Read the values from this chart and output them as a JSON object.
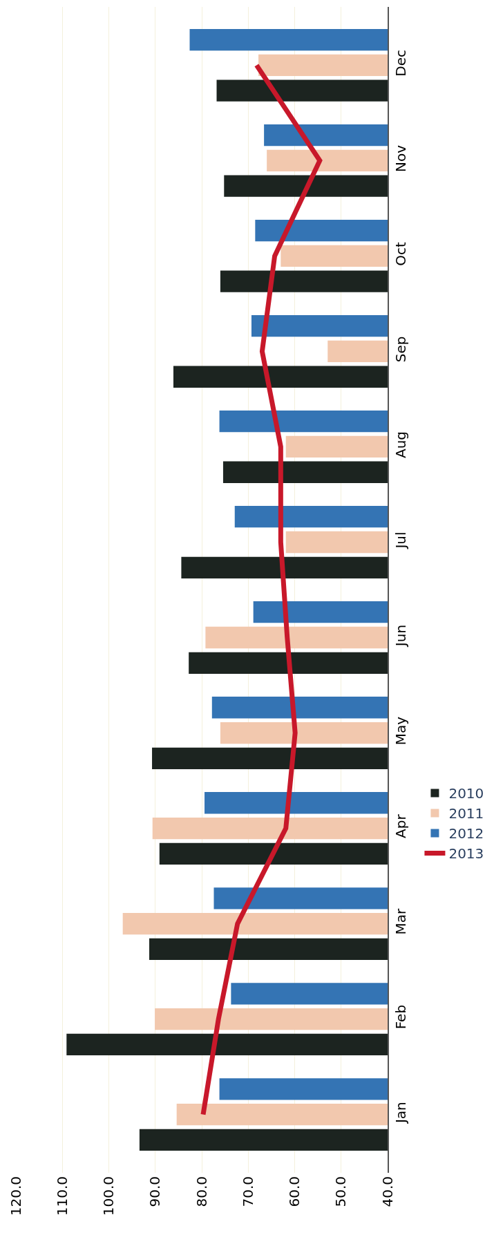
{
  "chart_data": {
    "type": "bar",
    "orientation": "horizontal",
    "categories": [
      "Dec",
      "Nov",
      "Oct",
      "Sep",
      "Aug",
      "Jul",
      "Jun",
      "May",
      "Apr",
      "Mar",
      "Feb",
      "Jan"
    ],
    "series": [
      {
        "name": "2010",
        "color": "#1c2420",
        "values": [
          76.8,
          75.2,
          76.0,
          86.1,
          75.4,
          84.4,
          82.8,
          90.7,
          89.1,
          91.3,
          109.1,
          93.4
        ]
      },
      {
        "name": "2011",
        "color": "#f2c8ae",
        "values": [
          67.8,
          66.0,
          63.0,
          52.9,
          61.9,
          61.9,
          79.2,
          76.0,
          90.6,
          97.0,
          90.1,
          85.4
        ]
      },
      {
        "name": "2012",
        "color": "#3474b4",
        "values": [
          82.6,
          66.6,
          68.5,
          69.3,
          76.2,
          72.9,
          68.9,
          77.8,
          79.4,
          77.4,
          73.7,
          76.2
        ]
      },
      {
        "name": "2013",
        "color": "#c8182a",
        "type": "line",
        "values": [
          68.2,
          54.6,
          64.3,
          67.0,
          63.0,
          63.0,
          61.6,
          59.9,
          61.9,
          72.3,
          76.4,
          79.7
        ]
      }
    ],
    "xlim": [
      120,
      40
    ],
    "xticks": [
      {
        "value": 120,
        "label": "120.0"
      },
      {
        "value": 110,
        "label": "110.0"
      },
      {
        "value": 100,
        "label": "100.0"
      },
      {
        "value": 90,
        "label": "90.0"
      },
      {
        "value": 80,
        "label": "80.0"
      },
      {
        "value": 70,
        "label": "70.0"
      },
      {
        "value": 60,
        "label": "60.0"
      },
      {
        "value": 50,
        "label": "50.0"
      },
      {
        "value": 40,
        "label": "40.0"
      }
    ],
    "grid": "x",
    "legend": "right",
    "marker": "none",
    "line_style": "solid"
  }
}
